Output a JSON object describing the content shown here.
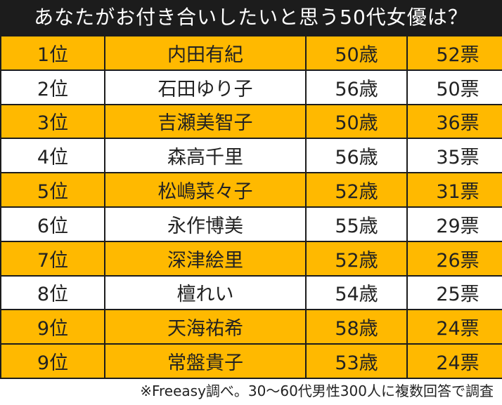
{
  "title": "あなたがお付き合いしたいと思う50代女優は？",
  "rows": [
    {
      "rank": "1位",
      "name": "内田有紀",
      "age": "50歳",
      "votes": "52票"
    },
    {
      "rank": "2位",
      "name": "石田ゆり子",
      "age": "56歳",
      "votes": "50票"
    },
    {
      "rank": "3位",
      "name": "吉瀬美智子",
      "age": "50歳",
      "votes": "36票"
    },
    {
      "rank": "4位",
      "name": "森高千里",
      "age": "56歳",
      "votes": "35票"
    },
    {
      "rank": "5位",
      "name": "松嶋菜々子",
      "age": "52歳",
      "votes": "31票"
    },
    {
      "rank": "6位",
      "name": "永作博美",
      "age": "55歳",
      "votes": "29票"
    },
    {
      "rank": "7位",
      "name": "深津絵里",
      "age": "52歳",
      "votes": "26票"
    },
    {
      "rank": "8位",
      "name": "檀れい",
      "age": "54歳",
      "votes": "25票"
    },
    {
      "rank": "9位",
      "name": "天海祐希",
      "age": "58歳",
      "votes": "24票"
    },
    {
      "rank": "9位",
      "name": "常盤貴子",
      "age": "53歳",
      "votes": "24票"
    }
  ],
  "note": "※Freeasy調べ。30～60代男性300人に複数回答で調査",
  "colors": {
    "header_bg": "#1c1c1c",
    "highlight_row": "#ffb900",
    "plain_row": "#ffffff"
  }
}
